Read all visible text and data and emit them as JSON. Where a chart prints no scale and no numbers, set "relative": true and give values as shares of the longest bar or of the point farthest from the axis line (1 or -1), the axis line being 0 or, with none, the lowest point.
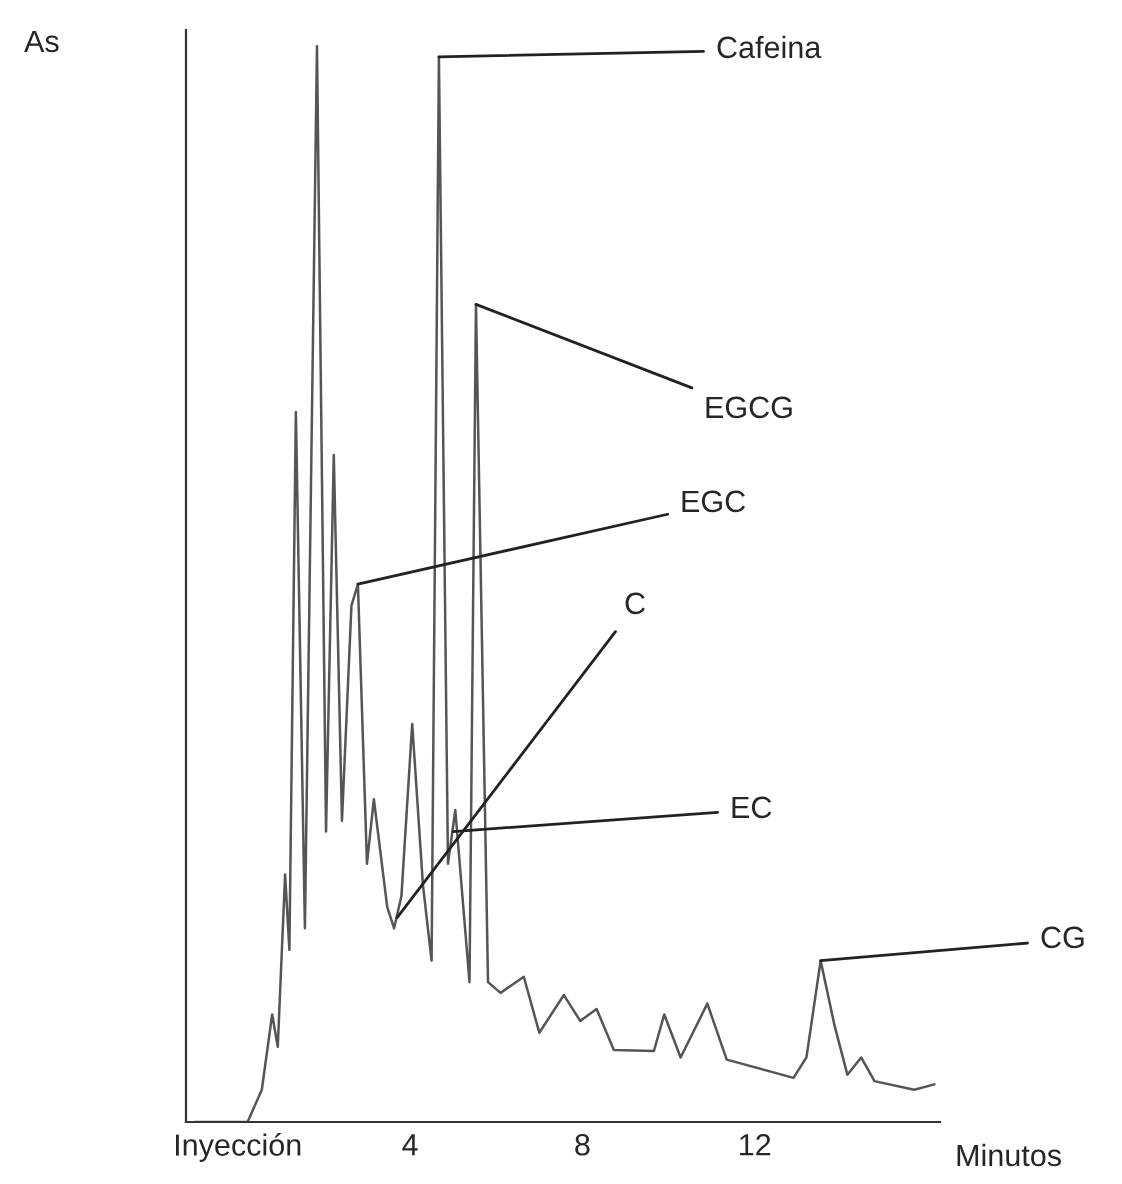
{
  "chart_data": {
    "type": "line",
    "relative": true,
    "xlabel": "Minutos",
    "ylabel": "As",
    "xlim": [
      -1.2,
      16.3
    ],
    "xticks": [
      {
        "value": 0,
        "label": "Inyección"
      },
      4,
      8,
      12
    ],
    "grid": false,
    "legend": false,
    "marker": "none",
    "line_style": "solid",
    "series": [
      {
        "color": "#555555",
        "x": [
          -1.0,
          0.23,
          0.56,
          0.8,
          0.93,
          1.1,
          1.2,
          1.35,
          1.56,
          1.84,
          2.05,
          2.23,
          2.42,
          2.64,
          2.79,
          3.0,
          3.16,
          3.47,
          3.63,
          3.8,
          4.05,
          4.3,
          4.5,
          4.67,
          4.88,
          5.05,
          5.38,
          5.53,
          5.81,
          6.1,
          6.64,
          7.0,
          7.57,
          7.95,
          8.33,
          8.73,
          9.66,
          9.9,
          10.28,
          10.9,
          11.35,
          12.9,
          13.2,
          13.53,
          13.85,
          14.15,
          14.47,
          14.78,
          15.7,
          16.17
        ],
        "values": [
          0,
          0,
          0.03,
          0.1,
          0.07,
          0.23,
          0.16,
          0.66,
          0.18,
          1.0,
          0.27,
          0.62,
          0.28,
          0.48,
          0.5,
          0.24,
          0.3,
          0.2,
          0.18,
          0.21,
          0.37,
          0.22,
          0.15,
          0.99,
          0.24,
          0.29,
          0.13,
          0.76,
          0.13,
          0.12,
          0.135,
          0.083,
          0.118,
          0.094,
          0.105,
          0.067,
          0.066,
          0.1,
          0.06,
          0.11,
          0.058,
          0.041,
          0.06,
          0.15,
          0.09,
          0.044,
          0.06,
          0.038,
          0.03,
          0.035
        ]
      }
    ],
    "annotations": [
      {
        "text": "Cafeina",
        "x": 4.67,
        "y": 0.99
      },
      {
        "text": "EGCG",
        "x": 5.53,
        "y": 0.76
      },
      {
        "text": "EGC",
        "x": 2.79,
        "y": 0.5
      },
      {
        "text": "C",
        "x": 3.7,
        "y": 0.19
      },
      {
        "text": "EC",
        "x": 5.0,
        "y": 0.27
      },
      {
        "text": "CG",
        "x": 13.53,
        "y": 0.15
      }
    ]
  }
}
